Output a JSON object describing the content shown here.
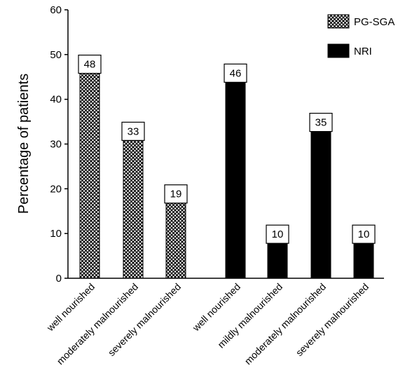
{
  "chart_data": {
    "type": "bar",
    "title": "",
    "ylabel": "Percentage of patients",
    "xlabel": "",
    "ylim": [
      0,
      60
    ],
    "yticks": [
      0,
      10,
      20,
      30,
      40,
      50,
      60
    ],
    "grid": false,
    "legend_position": "top-right",
    "series": [
      {
        "name": "PG-SGA",
        "pattern": "crosshatch",
        "color": "#000000",
        "categories": [
          "well nourished",
          "moderately malnourished",
          "severely malnourished"
        ],
        "values": [
          48,
          33,
          19
        ]
      },
      {
        "name": "NRI",
        "pattern": "solid",
        "color": "#000000",
        "categories": [
          "well nourished",
          "mildly malnourished",
          "moderately malnourished",
          "severely malnourished"
        ],
        "values": [
          46,
          10,
          35,
          10
        ]
      }
    ]
  }
}
